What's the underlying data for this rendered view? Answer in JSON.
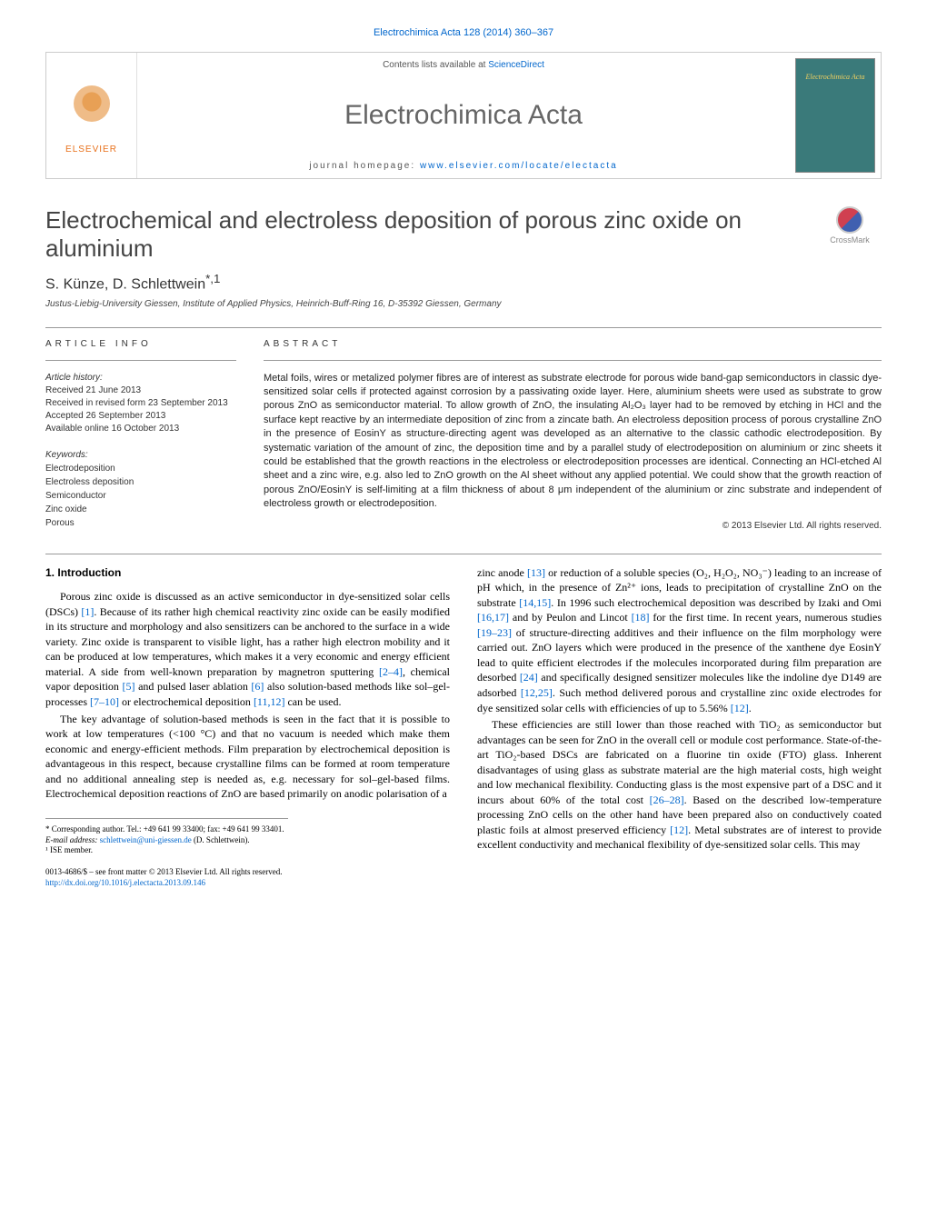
{
  "header": {
    "journal_ref": "Electrochimica Acta 128 (2014) 360–367",
    "contents_prefix": "Contents lists available at ",
    "contents_link": "ScienceDirect",
    "journal_name": "Electrochimica Acta",
    "homepage_prefix": "journal homepage: ",
    "homepage_link": "www.elsevier.com/locate/electacta",
    "publisher": "ELSEVIER",
    "crossmark": "CrossMark"
  },
  "article": {
    "title": "Electrochemical and electroless deposition of porous zinc oxide on aluminium",
    "authors": "S. Künze, D. Schlettwein",
    "author_marks": "*,1",
    "affiliation": "Justus-Liebig-University Giessen, Institute of Applied Physics, Heinrich-Buff-Ring 16, D-35392 Giessen, Germany"
  },
  "info": {
    "heading": "ARTICLE INFO",
    "history_label": "Article history:",
    "received": "Received 21 June 2013",
    "revised": "Received in revised form 23 September 2013",
    "accepted": "Accepted 26 September 2013",
    "online": "Available online 16 October 2013",
    "keywords_label": "Keywords:",
    "keywords": [
      "Electrodeposition",
      "Electroless deposition",
      "Semiconductor",
      "Zinc oxide",
      "Porous"
    ]
  },
  "abstract": {
    "heading": "ABSTRACT",
    "text": "Metal foils, wires or metalized polymer fibres are of interest as substrate electrode for porous wide band-gap semiconductors in classic dye-sensitized solar cells if protected against corrosion by a passivating oxide layer. Here, aluminium sheets were used as substrate to grow porous ZnO as semiconductor material. To allow growth of ZnO, the insulating Al₂O₃ layer had to be removed by etching in HCl and the surface kept reactive by an intermediate deposition of zinc from a zincate bath. An electroless deposition process of porous crystalline ZnO in the presence of EosinY as structure-directing agent was developed as an alternative to the classic cathodic electrodeposition. By systematic variation of the amount of zinc, the deposition time and by a parallel study of electrodeposition on aluminium or zinc sheets it could be established that the growth reactions in the electroless or electrodeposition processes are identical. Connecting an HCl-etched Al sheet and a zinc wire, e.g. also led to ZnO growth on the Al sheet without any applied potential. We could show that the growth reaction of porous ZnO/EosinY is self-limiting at a film thickness of about 8 μm independent of the aluminium or zinc substrate and independent of electroless growth or electrodeposition.",
    "copyright": "© 2013 Elsevier Ltd. All rights reserved."
  },
  "body": {
    "section_num": "1.",
    "section_title": "Introduction",
    "p1a": "Porous zinc oxide is discussed as an active semiconductor in dye-sensitized solar cells (DSCs) ",
    "p1_ref1": "[1]",
    "p1b": ". Because of its rather high chemical reactivity zinc oxide can be easily modified in its structure and morphology and also sensitizers can be anchored to the surface in a wide variety. Zinc oxide is transparent to visible light, has a rather high electron mobility and it can be produced at low temperatures, which makes it a very economic and energy efficient material. A side from well-known preparation by magnetron sputtering ",
    "p1_ref2": "[2–4]",
    "p1c": ", chemical vapor deposition ",
    "p1_ref3": "[5]",
    "p1d": " and pulsed laser ablation ",
    "p1_ref4": "[6]",
    "p1e": " also solution-based methods like sol–gel-processes ",
    "p1_ref5": "[7–10]",
    "p1f": " or electrochemical deposition ",
    "p1_ref6": "[11,12]",
    "p1g": " can be used.",
    "p2": "The key advantage of solution-based methods is seen in the fact that it is possible to work at low temperatures (<100 °C) and that no vacuum is needed which make them economic and energy-efficient methods. Film preparation by electrochemical deposition is advantageous in this respect, because crystalline films can be formed at room temperature and no additional annealing step is needed as, e.g. necessary for sol–gel-based films. Electrochemical deposition reactions of ZnO are based primarily on anodic polarisation of a",
    "p3a": "zinc anode ",
    "p3_ref1": "[13]",
    "p3b": " or reduction of a soluble species (O₂, H₂O₂, NO₃⁻) leading to an increase of pH which, in the presence of Zn²⁺ ions, leads to precipitation of crystalline ZnO on the substrate ",
    "p3_ref2": "[14,15]",
    "p3c": ". In 1996 such electrochemical deposition was described by Izaki and Omi ",
    "p3_ref3": "[16,17]",
    "p3d": " and by Peulon and Lincot ",
    "p3_ref4": "[18]",
    "p3e": " for the first time. In recent years, numerous studies ",
    "p3_ref5": "[19–23]",
    "p3f": " of structure-directing additives and their influence on the film morphology were carried out. ZnO layers which were produced in the presence of the xanthene dye EosinY lead to quite efficient electrodes if the molecules incorporated during film preparation are desorbed ",
    "p3_ref6": "[24]",
    "p3g": " and specifically designed sensitizer molecules like the indoline dye D149 are adsorbed ",
    "p3_ref7": "[12,25]",
    "p3h": ". Such method delivered porous and crystalline zinc oxide electrodes for dye sensitized solar cells with efficiencies of up to 5.56% ",
    "p3_ref8": "[12]",
    "p3i": ".",
    "p4a": "These efficiencies are still lower than those reached with TiO₂ as semiconductor but advantages can be seen for ZnO in the overall cell or module cost performance. State-of-the-art TiO₂-based DSCs are fabricated on a fluorine tin oxide (FTO) glass. Inherent disadvantages of using glass as substrate material are the high material costs, high weight and low mechanical flexibility. Conducting glass is the most expensive part of a DSC and it incurs about 60% of the total cost ",
    "p4_ref1": "[26–28]",
    "p4b": ". Based on the described low-temperature processing ZnO cells on the other hand have been prepared also on conductively coated plastic foils at almost preserved efficiency ",
    "p4_ref2": "[12]",
    "p4c": ". Metal substrates are of interest to provide excellent conductivity and mechanical flexibility of dye-sensitized solar cells. This may"
  },
  "footnotes": {
    "corr": "* Corresponding author. Tel.: +49 641 99 33400; fax: +49 641 99 33401.",
    "email_label": "E-mail address: ",
    "email": "schlettwein@uni-giessen.de",
    "email_who": " (D. Schlettwein).",
    "ise": "¹ ISE member.",
    "issn": "0013-4686/$ – see front matter © 2013 Elsevier Ltd. All rights reserved.",
    "doi": "http://dx.doi.org/10.1016/j.electacta.2013.09.146"
  },
  "colors": {
    "link": "#0066cc",
    "title_gray": "#444444",
    "border": "#cccccc",
    "elsevier_orange": "#e8701a"
  }
}
